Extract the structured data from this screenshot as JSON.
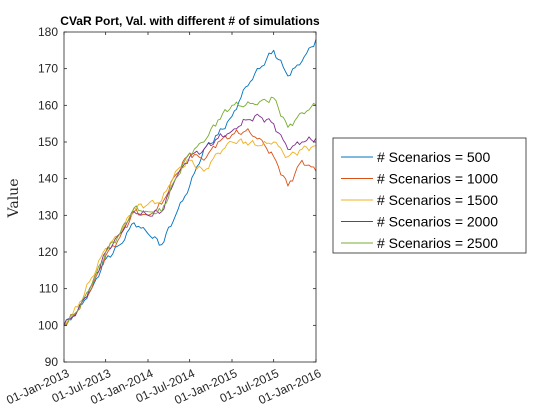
{
  "chart_data": {
    "type": "line",
    "title": "CVaR Port, Val. with different # of simulations",
    "xlabel": "",
    "ylabel": "Value",
    "ylim": [
      90,
      180
    ],
    "xlim": [
      "2013-01-01",
      "2016-01-01"
    ],
    "y_ticks": [
      90,
      100,
      110,
      120,
      130,
      140,
      150,
      160,
      170,
      180
    ],
    "x_ticks": [
      "2013-01-01",
      "2013-07-01",
      "2014-01-01",
      "2014-07-01",
      "2015-01-01",
      "2015-07-01",
      "2016-01-01"
    ],
    "x_tick_labels": [
      "01-Jan-2013",
      "01-Jul-2013",
      "01-Jan-2014",
      "01-Jul-2014",
      "01-Jan-2015",
      "01-Jul-2015",
      "01-Jan-2016"
    ],
    "x": [
      "2013-01-01",
      "2013-03-01",
      "2013-05-01",
      "2013-07-01",
      "2013-09-01",
      "2013-11-01",
      "2014-01-01",
      "2014-03-01",
      "2014-05-01",
      "2014-07-01",
      "2014-09-01",
      "2014-11-01",
      "2015-01-01",
      "2015-03-01",
      "2015-05-01",
      "2015-07-01",
      "2015-09-01",
      "2015-11-01",
      "2016-01-01"
    ],
    "grid": false,
    "legend_position": "outside-right",
    "series": [
      {
        "name": "# Scenarios = 500",
        "color": "#0072BD",
        "values": [
          100,
          104,
          110,
          118,
          122,
          128,
          125,
          122,
          130,
          138,
          148,
          152,
          157,
          165,
          170,
          175,
          168,
          172,
          178
        ]
      },
      {
        "name": "# Scenarios = 1000",
        "color": "#D95319",
        "values": [
          100,
          104,
          110,
          119,
          124,
          131,
          130,
          133,
          141,
          147,
          145,
          150,
          152,
          153,
          151,
          146,
          138,
          145,
          142
        ]
      },
      {
        "name": "# Scenarios = 1500",
        "color": "#EDB120",
        "values": [
          100,
          105,
          113,
          121,
          125,
          132,
          133,
          134,
          142,
          145,
          142,
          147,
          150,
          150,
          149,
          150,
          146,
          148,
          149
        ]
      },
      {
        "name": "# Scenarios = 2000",
        "color": "#7E2F8E",
        "values": [
          100,
          104,
          111,
          120,
          125,
          131,
          130,
          131,
          140,
          146,
          148,
          151,
          153,
          156,
          157,
          155,
          148,
          150,
          151
        ]
      },
      {
        "name": "# Scenarios = 2500",
        "color": "#77AC30",
        "values": [
          100,
          104,
          111,
          120,
          125,
          132,
          131,
          131,
          140,
          147,
          150,
          156,
          160,
          160,
          161,
          162,
          154,
          158,
          160
        ]
      }
    ]
  }
}
